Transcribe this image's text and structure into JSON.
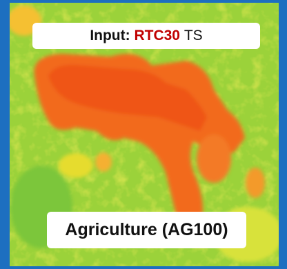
{
  "header": {
    "label": "Input:",
    "product": "RTC30",
    "suffix": "TS"
  },
  "caption": "Agriculture (AG100)"
}
